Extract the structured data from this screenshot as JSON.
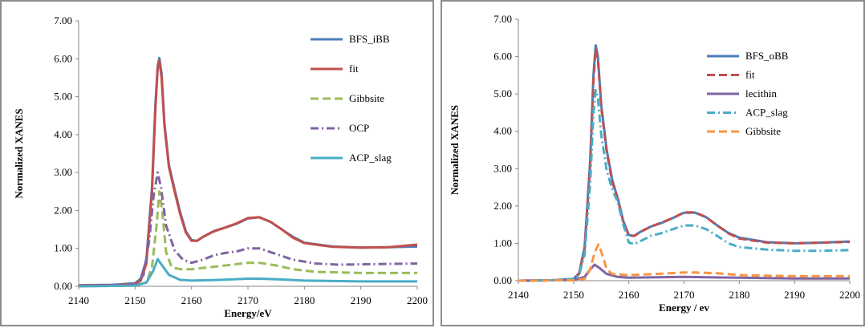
{
  "chart_data": [
    {
      "type": "line",
      "xlabel": "Energy/eV",
      "ylabel": "Normalized XANES",
      "xlim": [
        2140,
        2200
      ],
      "ylim": [
        0,
        7
      ],
      "x_ticks": [
        "2140",
        "2150",
        "2160",
        "2170",
        "2180",
        "2190",
        "2200"
      ],
      "y_ticks": [
        "0.00",
        "1.00",
        "2.00",
        "3.00",
        "4.00",
        "5.00",
        "6.00",
        "7.00"
      ],
      "legend_position": "top-right",
      "series": [
        {
          "name": "BFS_iBB",
          "color": "#4a7ebb",
          "dash": "solid",
          "points": [
            [
              2140,
              0.03
            ],
            [
              2146,
              0.04
            ],
            [
              2150,
              0.08
            ],
            [
              2151,
              0.2
            ],
            [
              2152,
              0.7
            ],
            [
              2153,
              2.6
            ],
            [
              2153.6,
              4.8
            ],
            [
              2154,
              5.8
            ],
            [
              2154.3,
              6.02
            ],
            [
              2154.7,
              5.6
            ],
            [
              2155.2,
              4.3
            ],
            [
              2156,
              3.2
            ],
            [
              2157,
              2.55
            ],
            [
              2158,
              1.95
            ],
            [
              2159,
              1.45
            ],
            [
              2160,
              1.22
            ],
            [
              2161,
              1.2
            ],
            [
              2162,
              1.3
            ],
            [
              2164,
              1.46
            ],
            [
              2166,
              1.55
            ],
            [
              2168,
              1.65
            ],
            [
              2170,
              1.79
            ],
            [
              2172,
              1.82
            ],
            [
              2174,
              1.7
            ],
            [
              2176,
              1.5
            ],
            [
              2178,
              1.3
            ],
            [
              2180,
              1.15
            ],
            [
              2185,
              1.05
            ],
            [
              2190,
              1.02
            ],
            [
              2195,
              1.03
            ],
            [
              2200,
              1.05
            ]
          ]
        },
        {
          "name": "fit",
          "color": "#c0504d",
          "dash": "solid",
          "points": [
            [
              2140,
              0.02
            ],
            [
              2146,
              0.03
            ],
            [
              2150,
              0.06
            ],
            [
              2151,
              0.15
            ],
            [
              2152,
              0.6
            ],
            [
              2153,
              2.5
            ],
            [
              2153.6,
              4.7
            ],
            [
              2154,
              5.75
            ],
            [
              2154.3,
              5.95
            ],
            [
              2154.7,
              5.5
            ],
            [
              2155.2,
              4.25
            ],
            [
              2156,
              3.15
            ],
            [
              2157,
              2.5
            ],
            [
              2158,
              1.9
            ],
            [
              2159,
              1.42
            ],
            [
              2160,
              1.2
            ],
            [
              2161,
              1.2
            ],
            [
              2162,
              1.3
            ],
            [
              2164,
              1.45
            ],
            [
              2166,
              1.55
            ],
            [
              2168,
              1.66
            ],
            [
              2170,
              1.8
            ],
            [
              2172,
              1.82
            ],
            [
              2174,
              1.7
            ],
            [
              2176,
              1.5
            ],
            [
              2178,
              1.28
            ],
            [
              2180,
              1.14
            ],
            [
              2185,
              1.04
            ],
            [
              2190,
              1.02
            ],
            [
              2195,
              1.03
            ],
            [
              2200,
              1.1
            ]
          ]
        },
        {
          "name": "Gibbsite",
          "color": "#9bbb59",
          "dash": "dashed",
          "points": [
            [
              2140,
              0.0
            ],
            [
              2150,
              0.02
            ],
            [
              2152,
              0.1
            ],
            [
              2153,
              0.5
            ],
            [
              2153.8,
              1.6
            ],
            [
              2154.3,
              2.5
            ],
            [
              2154.8,
              2.0
            ],
            [
              2155.5,
              0.9
            ],
            [
              2156.5,
              0.5
            ],
            [
              2158,
              0.45
            ],
            [
              2160,
              0.45
            ],
            [
              2163,
              0.5
            ],
            [
              2166,
              0.55
            ],
            [
              2170,
              0.62
            ],
            [
              2172,
              0.62
            ],
            [
              2175,
              0.55
            ],
            [
              2178,
              0.45
            ],
            [
              2182,
              0.38
            ],
            [
              2190,
              0.35
            ],
            [
              2200,
              0.35
            ]
          ]
        },
        {
          "name": "OCP",
          "color": "#8064a2",
          "dash": "dashdot",
          "points": [
            [
              2140,
              0.0
            ],
            [
              2150,
              0.05
            ],
            [
              2151.5,
              0.3
            ],
            [
              2152.5,
              1.2
            ],
            [
              2153.3,
              2.4
            ],
            [
              2154,
              3.0
            ],
            [
              2154.6,
              2.6
            ],
            [
              2155.5,
              1.6
            ],
            [
              2157,
              0.95
            ],
            [
              2158.5,
              0.7
            ],
            [
              2160,
              0.62
            ],
            [
              2162,
              0.7
            ],
            [
              2164,
              0.82
            ],
            [
              2166,
              0.88
            ],
            [
              2168,
              0.92
            ],
            [
              2170,
              1.0
            ],
            [
              2172,
              1.0
            ],
            [
              2174,
              0.9
            ],
            [
              2176,
              0.8
            ],
            [
              2178,
              0.7
            ],
            [
              2182,
              0.6
            ],
            [
              2186,
              0.57
            ],
            [
              2190,
              0.58
            ],
            [
              2200,
              0.6
            ]
          ]
        },
        {
          "name": "ACP_slag",
          "color": "#4bacc6",
          "dash": "solid",
          "points": [
            [
              2140,
              0.0
            ],
            [
              2150,
              0.02
            ],
            [
              2152,
              0.1
            ],
            [
              2153.2,
              0.4
            ],
            [
              2154,
              0.72
            ],
            [
              2154.8,
              0.55
            ],
            [
              2156,
              0.3
            ],
            [
              2158,
              0.17
            ],
            [
              2160,
              0.15
            ],
            [
              2165,
              0.17
            ],
            [
              2170,
              0.2
            ],
            [
              2172,
              0.2
            ],
            [
              2176,
              0.18
            ],
            [
              2180,
              0.15
            ],
            [
              2190,
              0.13
            ],
            [
              2200,
              0.13
            ]
          ]
        }
      ]
    },
    {
      "type": "line",
      "xlabel": "Energy / ev",
      "ylabel": "Normalized XANES",
      "xlim": [
        2140,
        2200
      ],
      "ylim": [
        0,
        7
      ],
      "x_ticks": [
        "2140",
        "2150",
        "2160",
        "2170",
        "2180",
        "2190",
        "2200"
      ],
      "y_ticks": [
        "0.00",
        "1.00",
        "2.00",
        "3.00",
        "4.00",
        "5.00",
        "6.00",
        "7.00"
      ],
      "legend_position": "top-right",
      "series": [
        {
          "name": "BFS_oBB",
          "color": "#4a7ebb",
          "dash": "solid",
          "points": [
            [
              2140,
              0.0
            ],
            [
              2146,
              0.01
            ],
            [
              2150,
              0.05
            ],
            [
              2151,
              0.2
            ],
            [
              2152,
              0.9
            ],
            [
              2153,
              3.2
            ],
            [
              2153.6,
              5.5
            ],
            [
              2154,
              6.3
            ],
            [
              2154.4,
              6.0
            ],
            [
              2155,
              4.7
            ],
            [
              2156,
              3.5
            ],
            [
              2157,
              2.7
            ],
            [
              2158,
              2.2
            ],
            [
              2159,
              1.6
            ],
            [
              2160,
              1.22
            ],
            [
              2161,
              1.2
            ],
            [
              2162,
              1.3
            ],
            [
              2164,
              1.45
            ],
            [
              2166,
              1.55
            ],
            [
              2168,
              1.68
            ],
            [
              2170,
              1.82
            ],
            [
              2172,
              1.82
            ],
            [
              2174,
              1.7
            ],
            [
              2176,
              1.48
            ],
            [
              2178,
              1.28
            ],
            [
              2180,
              1.15
            ],
            [
              2185,
              1.03
            ],
            [
              2190,
              1.0
            ],
            [
              2195,
              1.02
            ],
            [
              2200,
              1.05
            ]
          ]
        },
        {
          "name": "fit",
          "color": "#c0504d",
          "dash": "dashed",
          "points": [
            [
              2140,
              0.0
            ],
            [
              2146,
              0.01
            ],
            [
              2150,
              0.04
            ],
            [
              2151,
              0.18
            ],
            [
              2152,
              0.85
            ],
            [
              2153,
              3.1
            ],
            [
              2153.6,
              5.4
            ],
            [
              2154,
              6.2
            ],
            [
              2154.4,
              5.95
            ],
            [
              2155,
              4.65
            ],
            [
              2156,
              3.45
            ],
            [
              2157,
              2.65
            ],
            [
              2158,
              2.18
            ],
            [
              2159,
              1.58
            ],
            [
              2160,
              1.2
            ],
            [
              2161,
              1.2
            ],
            [
              2162,
              1.3
            ],
            [
              2164,
              1.45
            ],
            [
              2166,
              1.56
            ],
            [
              2168,
              1.68
            ],
            [
              2170,
              1.83
            ],
            [
              2172,
              1.83
            ],
            [
              2174,
              1.7
            ],
            [
              2176,
              1.48
            ],
            [
              2178,
              1.27
            ],
            [
              2180,
              1.13
            ],
            [
              2185,
              1.02
            ],
            [
              2190,
              1.0
            ],
            [
              2195,
              1.02
            ],
            [
              2200,
              1.04
            ]
          ]
        },
        {
          "name": "lecithin",
          "color": "#8064a2",
          "dash": "solid",
          "points": [
            [
              2140,
              0.0
            ],
            [
              2150,
              0.02
            ],
            [
              2152,
              0.1
            ],
            [
              2153,
              0.3
            ],
            [
              2153.8,
              0.43
            ],
            [
              2154.6,
              0.35
            ],
            [
              2156,
              0.18
            ],
            [
              2158,
              0.1
            ],
            [
              2160,
              0.08
            ],
            [
              2170,
              0.1
            ],
            [
              2180,
              0.08
            ],
            [
              2190,
              0.06
            ],
            [
              2200,
              0.06
            ]
          ]
        },
        {
          "name": "ACP_slag",
          "color": "#4bacc6",
          "dash": "dashdot",
          "points": [
            [
              2140,
              0.0
            ],
            [
              2146,
              0.01
            ],
            [
              2150,
              0.04
            ],
            [
              2151,
              0.15
            ],
            [
              2152,
              0.7
            ],
            [
              2153,
              2.6
            ],
            [
              2153.6,
              4.5
            ],
            [
              2154,
              5.1
            ],
            [
              2154.4,
              4.9
            ],
            [
              2155,
              3.9
            ],
            [
              2156,
              2.95
            ],
            [
              2157,
              2.45
            ],
            [
              2158,
              2.1
            ],
            [
              2159,
              1.5
            ],
            [
              2160,
              1.02
            ],
            [
              2161,
              0.98
            ],
            [
              2162,
              1.05
            ],
            [
              2164,
              1.2
            ],
            [
              2166,
              1.28
            ],
            [
              2168,
              1.38
            ],
            [
              2170,
              1.48
            ],
            [
              2172,
              1.48
            ],
            [
              2174,
              1.38
            ],
            [
              2176,
              1.2
            ],
            [
              2178,
              1.0
            ],
            [
              2180,
              0.9
            ],
            [
              2185,
              0.83
            ],
            [
              2190,
              0.8
            ],
            [
              2195,
              0.8
            ],
            [
              2200,
              0.82
            ]
          ]
        },
        {
          "name": "Gibbsite",
          "color": "#f79646",
          "dash": "dashed",
          "points": [
            [
              2140,
              0.0
            ],
            [
              2150,
              0.01
            ],
            [
              2152,
              0.05
            ],
            [
              2153,
              0.3
            ],
            [
              2153.8,
              0.75
            ],
            [
              2154.5,
              0.97
            ],
            [
              2155.2,
              0.7
            ],
            [
              2156,
              0.3
            ],
            [
              2157,
              0.18
            ],
            [
              2160,
              0.15
            ],
            [
              2165,
              0.18
            ],
            [
              2170,
              0.22
            ],
            [
              2172,
              0.22
            ],
            [
              2176,
              0.2
            ],
            [
              2180,
              0.15
            ],
            [
              2190,
              0.12
            ],
            [
              2200,
              0.12
            ]
          ]
        }
      ]
    }
  ]
}
